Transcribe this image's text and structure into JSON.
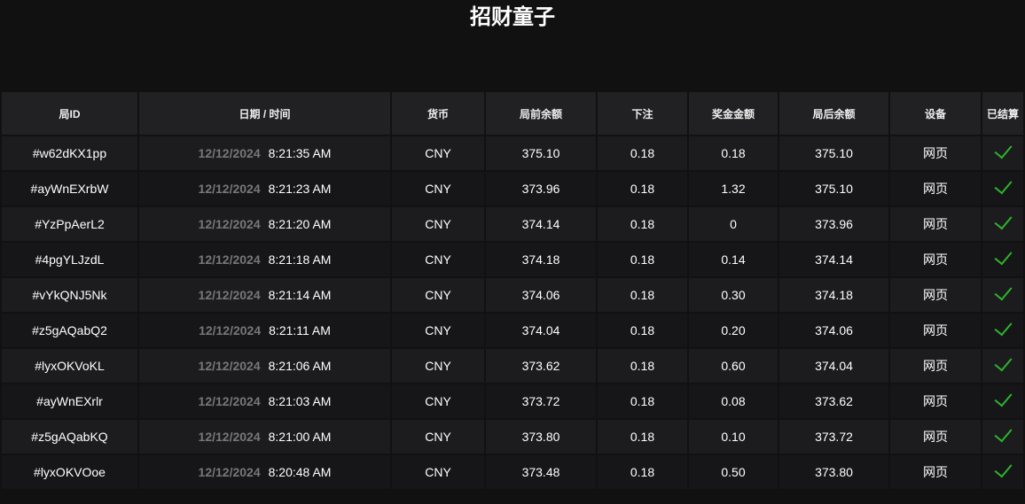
{
  "title": "招财童子",
  "columns": [
    "局ID",
    "日期 / 时间",
    "货币",
    "局前余额",
    "下注",
    "奖金金额",
    "局后余额",
    "设备",
    "已结算"
  ],
  "colors": {
    "settled_check": "#2db52d",
    "date_text": "#777777"
  },
  "rows": [
    {
      "id": "#w62dKX1pp",
      "date": "12/12/2024",
      "time": "8:21:35 AM",
      "currency": "CNY",
      "before": "375.10",
      "bet": "0.18",
      "win": "0.18",
      "after": "375.10",
      "device": "网页",
      "settled": true
    },
    {
      "id": "#ayWnEXrbW",
      "date": "12/12/2024",
      "time": "8:21:23 AM",
      "currency": "CNY",
      "before": "373.96",
      "bet": "0.18",
      "win": "1.32",
      "after": "375.10",
      "device": "网页",
      "settled": true
    },
    {
      "id": "#YzPpAerL2",
      "date": "12/12/2024",
      "time": "8:21:20 AM",
      "currency": "CNY",
      "before": "374.14",
      "bet": "0.18",
      "win": "0",
      "after": "373.96",
      "device": "网页",
      "settled": true
    },
    {
      "id": "#4pgYLJzdL",
      "date": "12/12/2024",
      "time": "8:21:18 AM",
      "currency": "CNY",
      "before": "374.18",
      "bet": "0.18",
      "win": "0.14",
      "after": "374.14",
      "device": "网页",
      "settled": true
    },
    {
      "id": "#vYkQNJ5Nk",
      "date": "12/12/2024",
      "time": "8:21:14 AM",
      "currency": "CNY",
      "before": "374.06",
      "bet": "0.18",
      "win": "0.30",
      "after": "374.18",
      "device": "网页",
      "settled": true
    },
    {
      "id": "#z5gAQabQ2",
      "date": "12/12/2024",
      "time": "8:21:11 AM",
      "currency": "CNY",
      "before": "374.04",
      "bet": "0.18",
      "win": "0.20",
      "after": "374.06",
      "device": "网页",
      "settled": true
    },
    {
      "id": "#lyxOKVoKL",
      "date": "12/12/2024",
      "time": "8:21:06 AM",
      "currency": "CNY",
      "before": "373.62",
      "bet": "0.18",
      "win": "0.60",
      "after": "374.04",
      "device": "网页",
      "settled": true
    },
    {
      "id": "#ayWnEXrlr",
      "date": "12/12/2024",
      "time": "8:21:03 AM",
      "currency": "CNY",
      "before": "373.72",
      "bet": "0.18",
      "win": "0.08",
      "after": "373.62",
      "device": "网页",
      "settled": true
    },
    {
      "id": "#z5gAQabKQ",
      "date": "12/12/2024",
      "time": "8:21:00 AM",
      "currency": "CNY",
      "before": "373.80",
      "bet": "0.18",
      "win": "0.10",
      "after": "373.72",
      "device": "网页",
      "settled": true
    },
    {
      "id": "#lyxOKVOoe",
      "date": "12/12/2024",
      "time": "8:20:48 AM",
      "currency": "CNY",
      "before": "373.48",
      "bet": "0.18",
      "win": "0.50",
      "after": "373.80",
      "device": "网页",
      "settled": true
    }
  ]
}
